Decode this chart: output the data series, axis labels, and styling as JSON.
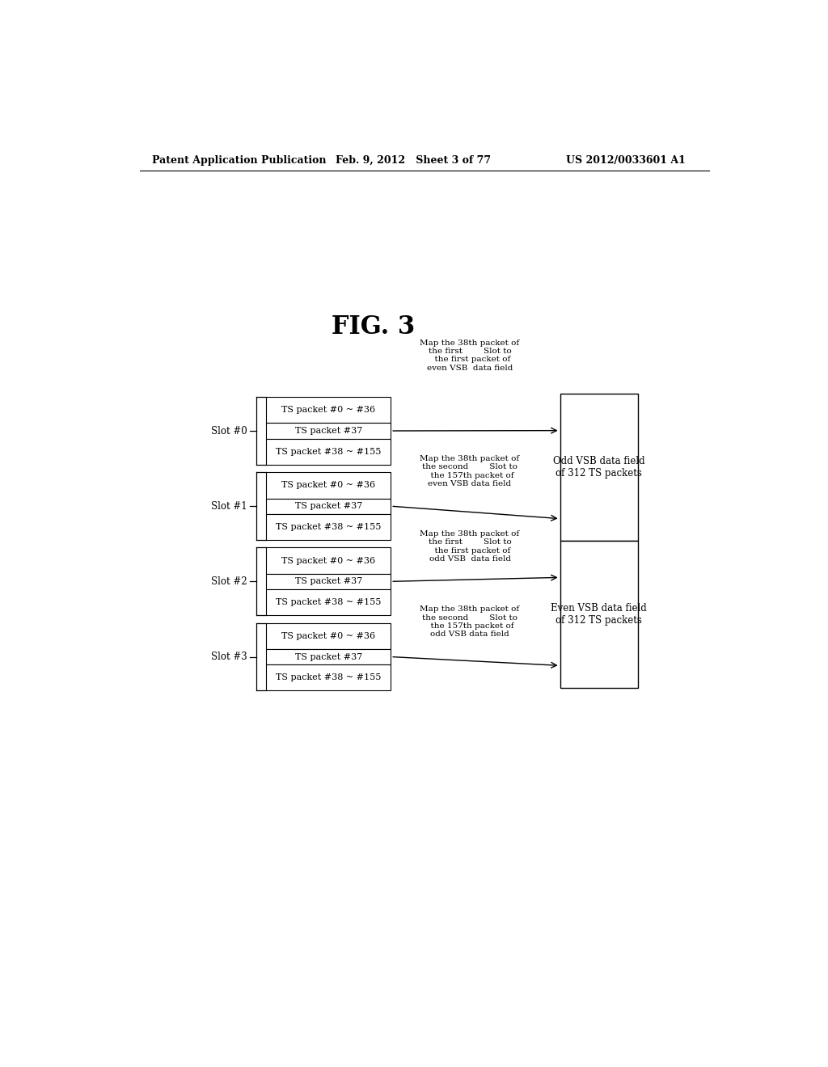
{
  "title": "FIG. 3",
  "header_left": "Patent Application Publication",
  "header_center": "Feb. 9, 2012   Sheet 3 of 77",
  "header_right": "US 2012/0033601 A1",
  "bg_color": "#ffffff",
  "text_color": "#000000",
  "slots": [
    {
      "label": "Slot #0",
      "rows": [
        "TS packet #0 ~ #36",
        "TS packet #37",
        "TS packet #38 ~ #155"
      ]
    },
    {
      "label": "Slot #1",
      "rows": [
        "TS packet #0 ~ #36",
        "TS packet #37",
        "TS packet #38 ~ #155"
      ]
    },
    {
      "label": "Slot #2",
      "rows": [
        "TS packet #0 ~ #36",
        "TS packet #37",
        "TS packet #38 ~ #155"
      ]
    },
    {
      "label": "Slot #3",
      "rows": [
        "TS packet #0 ~ #36",
        "TS packet #37",
        "TS packet #38 ~ #155"
      ]
    }
  ],
  "annotations": [
    "Map the 38th packet of\nthe first        Slot to\n  the first packet of\neven VSB  data field",
    "Map the 38th packet of\nthe second        Slot to\n  the 157th packet of\neven VSB data field",
    "Map the 38th packet of\nthe first        Slot to\n  the first packet of\nodd VSB  data field",
    "Map the 38th packet of\nthe second        Slot to\n  the 157th packet of\nodd VSB data field"
  ],
  "odd_vsb_label": "Odd VSB data field\nof 312 TS packets",
  "even_vsb_label": "Even VSB data field\nof 312 TS packets"
}
